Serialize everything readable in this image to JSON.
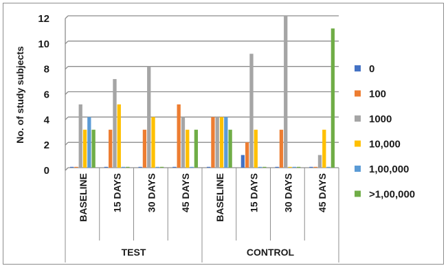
{
  "chart_data": {
    "type": "bar",
    "ylabel": "No. of study subjects",
    "ylim": [
      0,
      12
    ],
    "yticks": [
      0,
      2,
      4,
      6,
      8,
      10,
      12
    ],
    "grid": true,
    "legend_position": "right",
    "groups": [
      {
        "label": "TEST",
        "categories": [
          "BASELINE",
          "15 DAYS",
          "30 DAYS",
          "45 DAYS"
        ]
      },
      {
        "label": "CONTROL",
        "categories": [
          "BASELINE",
          "15 DAYS",
          "30 DAYS",
          "45 DAYS"
        ]
      }
    ],
    "categories": [
      "BASELINE",
      "15 DAYS",
      "30 DAYS",
      "45 DAYS",
      "BASELINE",
      "15 DAYS",
      "30 DAYS",
      "45 DAYS"
    ],
    "series": [
      {
        "name": "0",
        "color": "#4472c4",
        "values": [
          0,
          0,
          0,
          0,
          0,
          1,
          0,
          0
        ]
      },
      {
        "name": "100",
        "color": "#ed7d31",
        "values": [
          0,
          3,
          3,
          5,
          4,
          2,
          3,
          0
        ]
      },
      {
        "name": "1000",
        "color": "#a5a5a5",
        "values": [
          5,
          7,
          8,
          4,
          4,
          9,
          12,
          1
        ]
      },
      {
        "name": "10,000",
        "color": "#ffc000",
        "values": [
          3,
          5,
          4,
          3,
          4,
          3,
          0,
          3
        ]
      },
      {
        "name": "1,00,000",
        "color": "#5b9bd5",
        "values": [
          4,
          0,
          0,
          0,
          4,
          0,
          0,
          0
        ]
      },
      {
        "name": ">1,00,000",
        "color": "#70ad47",
        "values": [
          3,
          0,
          0,
          3,
          3,
          0,
          0,
          11
        ]
      }
    ]
  }
}
